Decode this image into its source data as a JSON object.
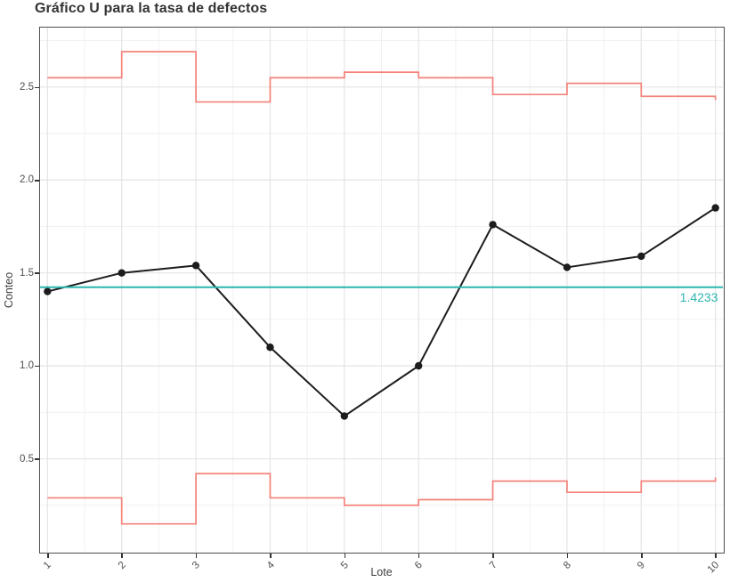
{
  "title": "Gráfico U para la tasa de defectos",
  "chart_data": {
    "type": "line",
    "subtype": "u-control-chart",
    "title": "Gráfico U para la tasa de defectos",
    "xlabel": "Lote",
    "ylabel": "Conteo",
    "x": [
      1,
      2,
      3,
      4,
      5,
      6,
      7,
      8,
      9,
      10
    ],
    "x_tick_labels": [
      "1",
      "2",
      "3",
      "4",
      "5",
      "6",
      "7",
      "8",
      "9",
      "10"
    ],
    "y_ticks": [
      0.5,
      1.0,
      1.5,
      2.0,
      2.5
    ],
    "y_tick_labels": [
      "0.5",
      "1.0",
      "1.5",
      "2.0",
      "2.5"
    ],
    "y_minor_ticks": [
      0.25,
      0.75,
      1.25,
      1.75,
      2.25,
      2.75
    ],
    "xlim": [
      0.9,
      10.1
    ],
    "ylim": [
      0,
      2.82
    ],
    "grid": "major+minor",
    "legend": "none",
    "series": [
      {
        "name": "Conteo",
        "render": "line+markers",
        "color": "#1c1c1c",
        "values": [
          1.4,
          1.5,
          1.54,
          1.1,
          0.73,
          1.0,
          1.76,
          1.53,
          1.59,
          1.85
        ]
      },
      {
        "name": "UCL",
        "render": "step",
        "color": "#f4827a",
        "values": [
          2.55,
          2.69,
          2.42,
          2.55,
          2.58,
          2.55,
          2.46,
          2.52,
          2.45,
          2.43
        ]
      },
      {
        "name": "LCL",
        "render": "step",
        "color": "#f4827a",
        "values": [
          0.29,
          0.15,
          0.42,
          0.29,
          0.25,
          0.28,
          0.38,
          0.32,
          0.38,
          0.4
        ]
      },
      {
        "name": "CL",
        "render": "hline",
        "color": "#2cb5ae",
        "value": 1.4233,
        "label": "1.4233"
      }
    ]
  },
  "colors": {
    "limit_line": "#f4827a",
    "center_line": "#2cb5ae",
    "data_line": "#1c1c1c",
    "grid_major": "#e4e4e4",
    "grid_minor": "#f1f1f1",
    "panel_border": "#4e4e4e",
    "axis_text": "#4e4e4e",
    "title_text": "#333333"
  }
}
